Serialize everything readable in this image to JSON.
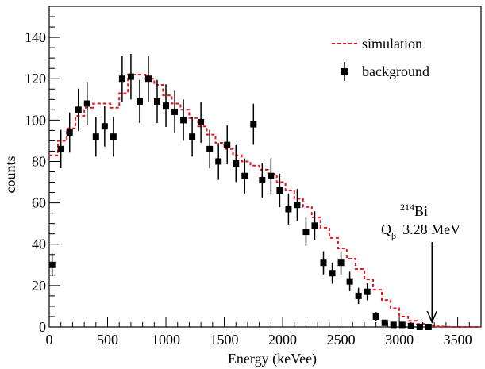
{
  "chart_data": {
    "type": "scatter",
    "xlabel": "Energy (keVee)",
    "ylabel": "counts",
    "xlim": [
      0,
      3700
    ],
    "ylim": [
      0,
      155
    ],
    "xticks": [
      0,
      500,
      1000,
      1500,
      2000,
      2500,
      3000,
      3500
    ],
    "yticks": [
      0,
      20,
      40,
      60,
      80,
      100,
      120,
      140
    ],
    "grid": false,
    "legend_position": "top-right",
    "series": [
      {
        "name": "background",
        "style": "markers-with-error-bars",
        "color": "#000000",
        "x": [
          25,
          100,
          175,
          250,
          325,
          400,
          475,
          550,
          625,
          700,
          775,
          850,
          925,
          1000,
          1075,
          1150,
          1225,
          1300,
          1375,
          1450,
          1525,
          1600,
          1675,
          1750,
          1825,
          1900,
          1975,
          2050,
          2125,
          2200,
          2275,
          2350,
          2425,
          2500,
          2575,
          2650,
          2725,
          2800,
          2875,
          2950,
          3025,
          3100,
          3175,
          3250
        ],
        "y": [
          30,
          86,
          94,
          105,
          108,
          92,
          97,
          92,
          120,
          121,
          109,
          120,
          109,
          107,
          104,
          100,
          92,
          99,
          86,
          80,
          88,
          79,
          73,
          98,
          71,
          73,
          66,
          57,
          59,
          46,
          49,
          31,
          26,
          31,
          22,
          15,
          17,
          5,
          2,
          1,
          1,
          0.5,
          0,
          0
        ],
        "yerr": [
          5.5,
          9.3,
          9.7,
          10.2,
          10.4,
          9.6,
          9.8,
          9.6,
          11.0,
          11.0,
          10.4,
          11.0,
          10.4,
          10.3,
          10.2,
          10.0,
          9.6,
          9.9,
          9.3,
          8.9,
          9.4,
          8.9,
          8.5,
          9.9,
          8.4,
          8.5,
          8.1,
          7.5,
          7.7,
          6.8,
          7.0,
          5.6,
          5.1,
          5.6,
          4.7,
          3.9,
          4.1,
          2.2,
          1.4,
          1.0,
          1.0,
          0.7,
          0,
          0
        ]
      },
      {
        "name": "simulation",
        "style": "dashed-step",
        "color": "#e8141c",
        "x": [
          0,
          75,
          150,
          225,
          300,
          375,
          450,
          525,
          600,
          675,
          750,
          825,
          900,
          975,
          1050,
          1125,
          1200,
          1275,
          1350,
          1425,
          1500,
          1575,
          1650,
          1725,
          1800,
          1875,
          1950,
          2025,
          2100,
          2175,
          2250,
          2325,
          2400,
          2475,
          2550,
          2625,
          2700,
          2775,
          2850,
          2925,
          3000,
          3075,
          3150,
          3225,
          3300,
          3375,
          3450,
          3525,
          3600,
          3700
        ],
        "y": [
          83,
          90,
          96,
          102,
          106,
          108,
          108,
          106,
          113,
          122,
          122,
          120,
          117,
          112,
          108,
          105,
          101,
          97,
          93,
          89,
          86,
          83,
          80,
          78,
          76,
          74,
          70,
          66,
          62,
          58,
          53,
          48,
          43,
          38,
          33,
          28,
          23,
          18,
          13,
          9,
          5,
          3,
          1.5,
          0.8,
          0.3,
          0.1,
          0,
          0,
          0,
          0
        ]
      }
    ],
    "annotations": [
      {
        "isotope": "Bi",
        "mass_number": "214",
        "q_symbol": "Q",
        "q_sub": "β",
        "value_text": "3.28 MeV",
        "arrow_x": 3280
      }
    ]
  }
}
